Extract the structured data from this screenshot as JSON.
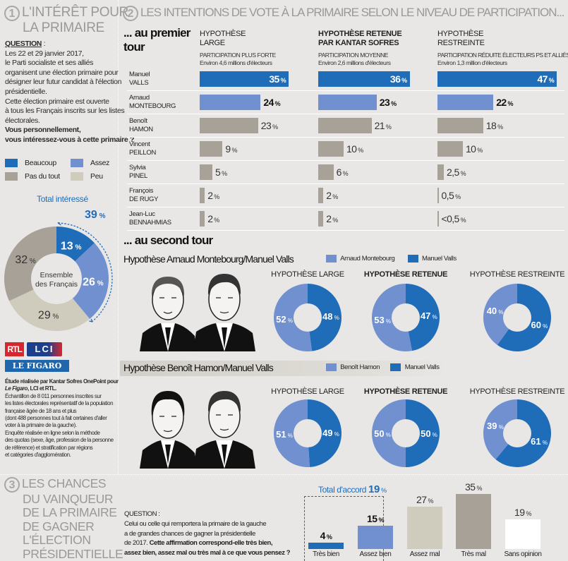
{
  "section1": {
    "number": "1",
    "title_line1": "L'INTÉRÊT POUR",
    "title_line2": "LA PRIMAIRE",
    "question_label": "QUESTION",
    "question_colon": " :",
    "question_lines": [
      "Les 22 et 29 janvier 2017,",
      "le Parti socialiste et ses alliés",
      "organisent une élection primaire pour",
      "désigner leur futur candidat à l'élection",
      "présidentielle.",
      "Cette élection primaire est ouverte",
      "à tous les Français inscrits sur les listes",
      "électorales."
    ],
    "question_bold_lines": [
      "Vous personnellement,",
      "vous intéressez-vous à cette primaire ?"
    ],
    "legend": [
      {
        "label": "Beaucoup",
        "color": "#1f6cb8"
      },
      {
        "label": "Assez",
        "color": "#7190cf"
      },
      {
        "label": "Pas du tout",
        "color": "#a8a197"
      },
      {
        "label": "Peu",
        "color": "#cfcbbd"
      }
    ],
    "total_label": "Total intéressé",
    "total_value": "39",
    "pie_center_line1": "Ensemble",
    "pie_center_line2": "des Français"
  },
  "logos": {
    "rtl": "RTL",
    "lci": "LCI",
    "figaro": "LE FIGARO"
  },
  "methodology": {
    "bold_line1": "Étude réalisée par Kantar Sofres OnePoint pour",
    "bold_italic": "Le Figaro",
    "bold_line2_rest": ", LCI et RTL.",
    "lines": [
      "Échantillon de 8 011 personnes inscrites sur",
      "les listes électorales représentatif de la population",
      "française âgée de 18 ans et plus",
      "(dont 488 personnes tout à fait certaines d'aller",
      "voter à la primaire de la gauche).",
      "Enquête réalisée en ligne selon la méthode",
      "des quotas (sexe, âge, profession de la personne",
      "de référence) et stratification par régions",
      "et catégories d'agglomération."
    ]
  },
  "section2": {
    "number": "2",
    "title": "LES INTENTIONS DE VOTE À LA PRIMAIRE SELON LE NIVEAU DE PARTICIPATION...",
    "first_round_line1": "... au premier",
    "first_round_line2": "tour",
    "columns": [
      {
        "head1": "HYPOTHÈSE",
        "head2": "LARGE",
        "sub1": "PARTICIPATION PLUS FORTE",
        "sub2": "Environ 4,6 millions d'électeurs",
        "bold": false
      },
      {
        "head1": "HYPOTHÈSE RETENUE",
        "head2": "PAR KANTAR SOFRES",
        "sub1": "PARTICIPATION MOYENNE",
        "sub2": "Environ 2,6  millions d'électeurs",
        "bold": true
      },
      {
        "head1": "HYPOTHÈSE",
        "head2": "RESTREINTE",
        "sub1": "PARTICIPATION RÉDUITE ÉLECTEURS PS ET ALLIÉS",
        "sub2": "Environ 1,3  million d'électeurs",
        "bold": false
      }
    ],
    "second_round_title": "... au second tour",
    "donut_heads": [
      "HYPOTHÈSE LARGE",
      "HYPOTHÈSE RETENUE",
      "HYPOTHÈSE RESTREINTE"
    ]
  },
  "section3": {
    "number": "3",
    "title_lines": [
      "LES CHANCES",
      "DU VAINQUEUR",
      "DE LA PRIMAIRE",
      "DE GAGNER",
      "L'ÉLECTION",
      "PRÉSIDENTIELLE"
    ],
    "question_label": "QUESTION :",
    "question_lines": [
      "Celui ou celle qui remportera la primaire de la gauche",
      "a de grandes chances de gagner la présidentielle"
    ],
    "question_line3_plain": "de 2017. ",
    "question_line3_bold": "Cette affirmation correspond-elle très bien,",
    "question_line4_bold": "assez bien, assez mal ou très mal à ce que vous pensez ?",
    "total_label": "Total d'accord",
    "total_value": "19"
  },
  "chart_data": [
    {
      "type": "pie",
      "title": "Total intéressé",
      "subtitle": "Ensemble des Français",
      "categories": [
        "Beaucoup",
        "Assez",
        "Peu",
        "Pas du tout"
      ],
      "values": [
        13,
        26,
        29,
        32
      ],
      "colors": [
        "#1f6cb8",
        "#7190cf",
        "#cfcbbd",
        "#a8a197"
      ],
      "annotation": "Total intéressé 39 %",
      "unit": "%"
    },
    {
      "type": "bar",
      "title": "... au premier tour",
      "orientation": "horizontal",
      "categories": [
        {
          "first": "Manuel",
          "last": "VALLS"
        },
        {
          "first": "Arnaud",
          "last": "MONTEBOURG"
        },
        {
          "first": "Benoît",
          "last": "HAMON"
        },
        {
          "first": "Vincent",
          "last": "PEILLON"
        },
        {
          "first": "Sylvia",
          "last": "PINEL"
        },
        {
          "first": "François",
          "last": "DE RUGY"
        },
        {
          "first": "Jean-Luc",
          "last": "BENNAHMIAS"
        }
      ],
      "series": [
        {
          "name": "Hypothèse large",
          "values": [
            35,
            24,
            23,
            9,
            5,
            2,
            2
          ],
          "labels": [
            "35",
            "24",
            "23",
            "9",
            "5",
            "2",
            "2"
          ]
        },
        {
          "name": "Hypothèse retenue par Kantar Sofres",
          "values": [
            36,
            23,
            21,
            10,
            6,
            2,
            2
          ],
          "labels": [
            "36",
            "23",
            "21",
            "10",
            "6",
            "2",
            "2"
          ]
        },
        {
          "name": "Hypothèse restreinte",
          "values": [
            47,
            22,
            18,
            10,
            2.5,
            0.5,
            0.25
          ],
          "labels": [
            "47",
            "22",
            "18",
            "10",
            "2,5",
            "0,5",
            "<0,5"
          ]
        }
      ],
      "colors": {
        "leader": "#1f6cb8",
        "second": "#7190cf",
        "others": "#a8a197"
      },
      "xlim": [
        0,
        50
      ],
      "unit": "%"
    },
    {
      "type": "pie",
      "title": "Hypothèse Arnaud Montebourg/Manuel Valls",
      "legend": [
        {
          "label": "Arnaud Montebourg",
          "color": "#7190cf"
        },
        {
          "label": "Manuel Valls",
          "color": "#1f6cb8"
        }
      ],
      "hypotheses": [
        {
          "name": "HYPOTHÈSE LARGE",
          "values": {
            "Arnaud Montebourg": 52,
            "Manuel Valls": 48
          }
        },
        {
          "name": "HYPOTHÈSE RETENUE",
          "values": {
            "Arnaud Montebourg": 53,
            "Manuel Valls": 47
          }
        },
        {
          "name": "HYPOTHÈSE RESTREINTE",
          "values": {
            "Arnaud Montebourg": 40,
            "Manuel Valls": 60
          }
        }
      ],
      "unit": "%"
    },
    {
      "type": "pie",
      "title": "Hypothèse Benoît Hamon/Manuel Valls",
      "legend": [
        {
          "label": "Benoît Hamon",
          "color": "#7190cf"
        },
        {
          "label": "Manuel Valls",
          "color": "#1f6cb8"
        }
      ],
      "hypotheses": [
        {
          "name": "HYPOTHÈSE LARGE",
          "values": {
            "Benoît Hamon": 51,
            "Manuel Valls": 49
          }
        },
        {
          "name": "HYPOTHÈSE RETENUE",
          "values": {
            "Benoît Hamon": 50,
            "Manuel Valls": 50
          }
        },
        {
          "name": "HYPOTHÈSE RESTREINTE",
          "values": {
            "Benoît Hamon": 39,
            "Manuel Valls": 61
          }
        }
      ],
      "unit": "%"
    },
    {
      "type": "bar",
      "title": "Les chances du vainqueur de la primaire de gagner l'élection présidentielle",
      "categories": [
        "Très bien",
        "Assez bien",
        "Assez mal",
        "Très mal",
        "Sans opinion"
      ],
      "values": [
        4,
        15,
        27,
        35,
        19
      ],
      "colors": [
        "#1f6cb8",
        "#7190cf",
        "#cfcbbd",
        "#a8a197",
        "#ffffff"
      ],
      "annotation": "Total d'accord 19 %",
      "ylim": [
        0,
        35
      ],
      "unit": "%"
    }
  ]
}
